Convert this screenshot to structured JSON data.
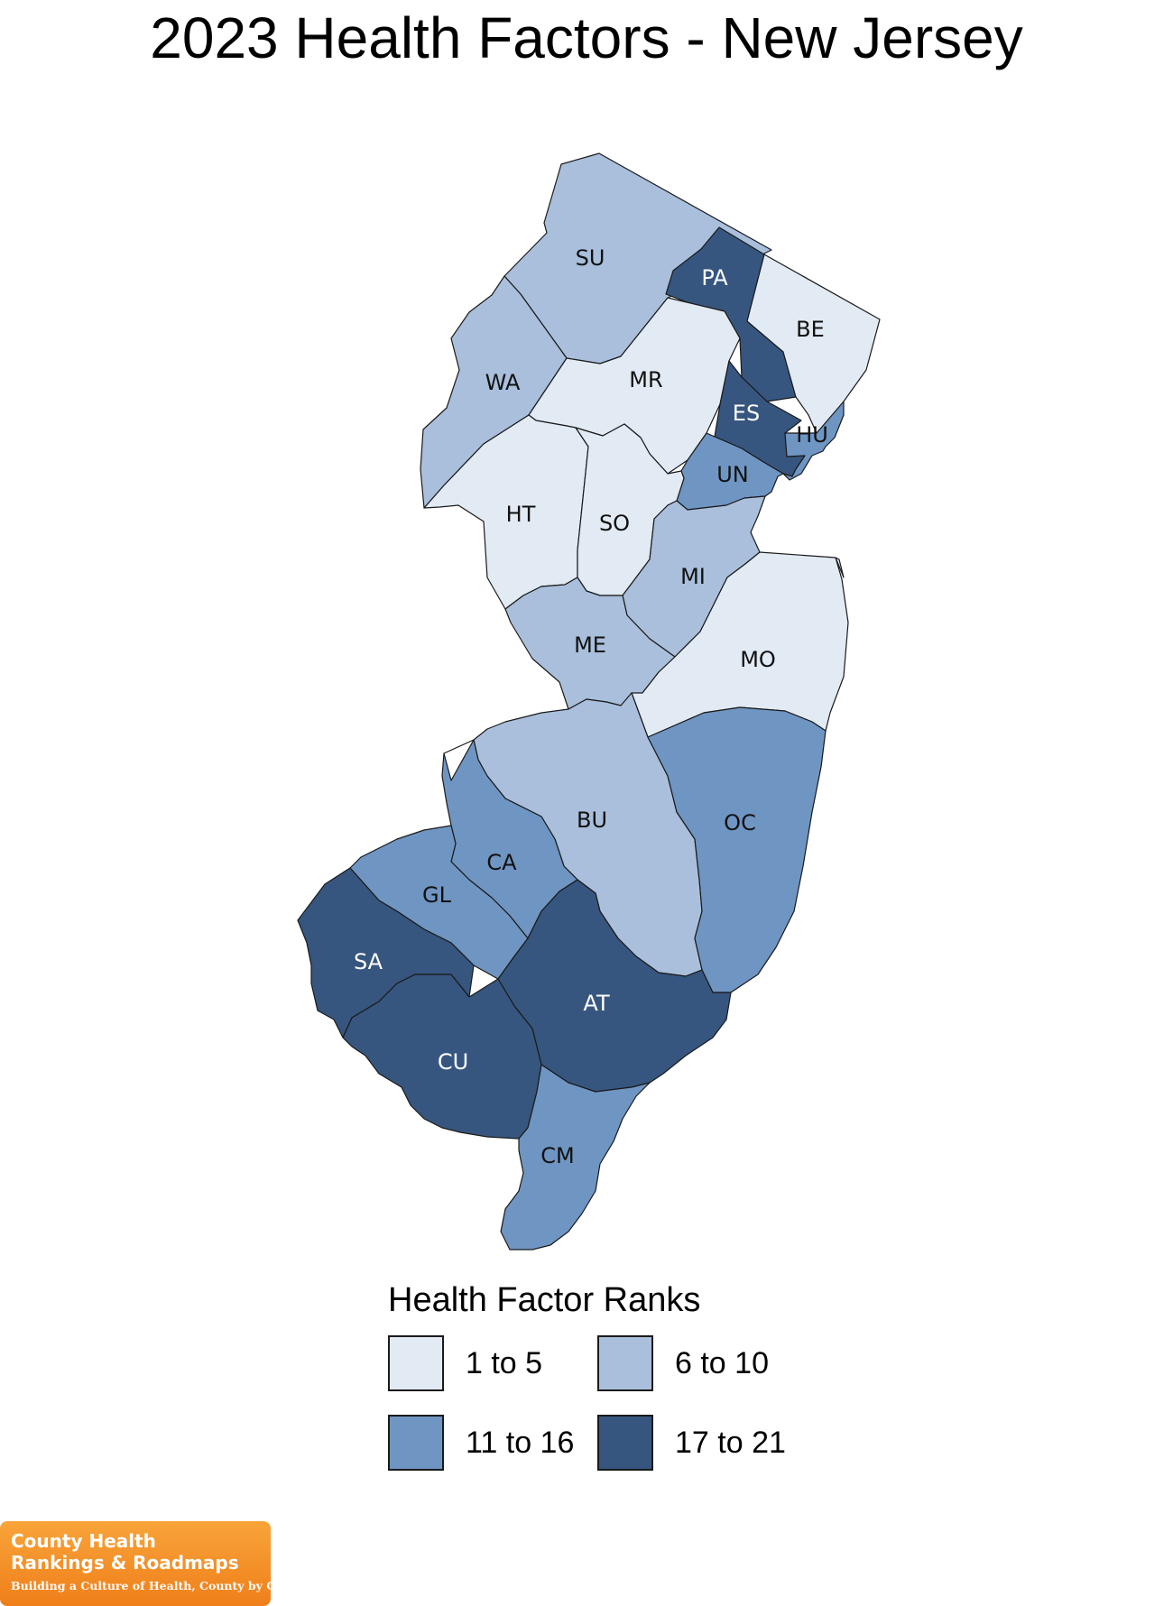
{
  "title": "2023 Health Factors - New Jersey",
  "colors": {
    "1-5": "#e2eaf4",
    "6-10": "#a9bfdc",
    "11-16": "#6f95c3",
    "17-21": "#36567f"
  },
  "legend": {
    "title": "Health Factor Ranks",
    "items": [
      {
        "label": "1 to 5",
        "color": "#e2eaf4"
      },
      {
        "label": "6 to 10",
        "color": "#a9bfdc"
      },
      {
        "label": "11 to 16",
        "color": "#6f95c3"
      },
      {
        "label": "17 to 21",
        "color": "#36567f"
      }
    ]
  },
  "counties": [
    {
      "code": "SU",
      "group": "6-10"
    },
    {
      "code": "PA",
      "group": "17-21"
    },
    {
      "code": "BE",
      "group": "1-5"
    },
    {
      "code": "WA",
      "group": "6-10"
    },
    {
      "code": "MR",
      "group": "1-5"
    },
    {
      "code": "ES",
      "group": "17-21"
    },
    {
      "code": "HU",
      "group": "11-16"
    },
    {
      "code": "UN",
      "group": "11-16"
    },
    {
      "code": "HT",
      "group": "1-5"
    },
    {
      "code": "SO",
      "group": "1-5"
    },
    {
      "code": "MI",
      "group": "6-10"
    },
    {
      "code": "ME",
      "group": "6-10"
    },
    {
      "code": "MO",
      "group": "1-5"
    },
    {
      "code": "BU",
      "group": "6-10"
    },
    {
      "code": "OC",
      "group": "11-16"
    },
    {
      "code": "CA",
      "group": "11-16"
    },
    {
      "code": "GL",
      "group": "11-16"
    },
    {
      "code": "SA",
      "group": "17-21"
    },
    {
      "code": "AT",
      "group": "17-21"
    },
    {
      "code": "CU",
      "group": "17-21"
    },
    {
      "code": "CM",
      "group": "11-16"
    }
  ],
  "logo": {
    "line1": "County Health",
    "line2": "Rankings & Roadmaps",
    "tagline": "Building a Culture of Health, County by County"
  }
}
